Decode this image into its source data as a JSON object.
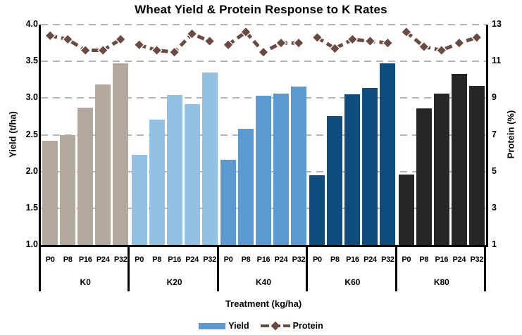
{
  "title": "Wheat Yield & Protein Response to K Rates",
  "axes": {
    "left": {
      "title": "Yield (t/ha)",
      "ticks": [
        "4.0",
        "3.5",
        "3.0",
        "2.5",
        "2.0",
        "1.5",
        "1.0"
      ]
    },
    "right": {
      "title": "Protein (%)",
      "ticks": [
        "13",
        "11",
        "9",
        "7",
        "5",
        "3",
        "1"
      ]
    },
    "x": {
      "title": "Treatment (kg/ha)"
    }
  },
  "legend": [
    {
      "label": "Yield",
      "marker": "bar-swatch",
      "color": "#5a9ad1"
    },
    {
      "label": "Protein",
      "marker": "dashed-line-diamond",
      "color": "#6b4a41"
    }
  ],
  "chart_data": {
    "type": "bar",
    "subtype": "grouped bars (left axis) with dashed diamond-marker line (right axis), dual-axis combo",
    "title": "Wheat Yield & Protein Response to K Rates",
    "xlabel": "Treatment (kg/ha)",
    "ylabel_left": "Yield (t/ha)",
    "ylabel_right": "Protein (%)",
    "ylim_left": [
      1.0,
      4.0
    ],
    "ylim_right": [
      1,
      13
    ],
    "left_tick_values": [
      4.0,
      3.5,
      3.0,
      2.5,
      2.0,
      1.5,
      1.0
    ],
    "right_tick_values": [
      13,
      11,
      9,
      7,
      5,
      3,
      1
    ],
    "gridline_values_left": [
      4.0,
      3.5,
      3.0,
      2.5,
      2.0,
      1.5
    ],
    "grid": "dashed horizontal gray",
    "legend_position": "bottom center",
    "groups": [
      "K0",
      "K20",
      "K40",
      "K60",
      "K80"
    ],
    "sub_categories": [
      "P0",
      "P8",
      "P16",
      "P24",
      "P32"
    ],
    "series": [
      {
        "name": "Yield",
        "type": "bar",
        "axis": "left",
        "unit": "t/ha",
        "values_by_group": {
          "K0": [
            2.42,
            2.5,
            2.87,
            3.19,
            3.47
          ],
          "K20": [
            2.23,
            2.71,
            3.04,
            2.92,
            3.35
          ],
          "K40": [
            2.16,
            2.58,
            3.03,
            3.06,
            3.16
          ],
          "K60": [
            1.95,
            2.75,
            3.05,
            3.14,
            3.47
          ],
          "K80": [
            1.96,
            2.86,
            3.06,
            3.33,
            3.17
          ]
        }
      },
      {
        "name": "Protein",
        "type": "line",
        "axis": "right",
        "unit": "%",
        "marker": "diamond",
        "linestyle": "dashed",
        "segmented_per_group": true,
        "values_by_group": {
          "K0": [
            12.4,
            12.2,
            11.6,
            11.6,
            12.2
          ],
          "K20": [
            11.9,
            11.6,
            11.5,
            12.5,
            12.1
          ],
          "K40": [
            11.9,
            12.6,
            11.5,
            12.0,
            12.0
          ],
          "K60": [
            12.3,
            11.7,
            12.2,
            12.1,
            12.0
          ],
          "K80": [
            12.6,
            11.8,
            11.6,
            12.0,
            12.3
          ]
        }
      }
    ],
    "bar_colors_by_group": {
      "K0": "#b2a89b",
      "K20": "#92c1e3",
      "K40": "#5a9ad1",
      "K60": "#0e4d7e",
      "K80": "#262626"
    },
    "line_color": "#6b4a41",
    "gridline_color": "#b5b5b5"
  }
}
